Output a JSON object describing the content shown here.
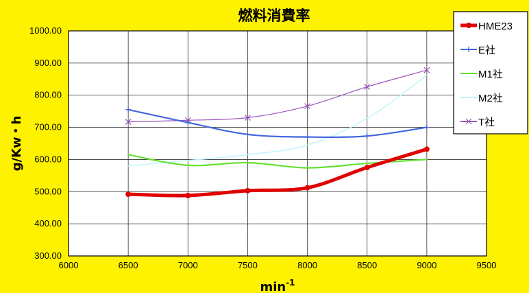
{
  "chart_data": {
    "type": "line",
    "title": "燃料消費率",
    "xlabel": "min",
    "xlabel_sup": "-1",
    "ylabel": "g/Kw・h",
    "xlim": [
      6000,
      9500
    ],
    "ylim": [
      300,
      1000
    ],
    "x_ticks": [
      "6000",
      "6500",
      "7000",
      "7500",
      "8000",
      "8500",
      "9000",
      "9500"
    ],
    "y_ticks": [
      "300.00",
      "400.00",
      "500.00",
      "600.00",
      "700.00",
      "800.00",
      "900.00",
      "1000.00"
    ],
    "x": [
      6500,
      7000,
      7500,
      8000,
      8500,
      9000
    ],
    "grid": true,
    "legend_position": "top-right",
    "series": [
      {
        "name": "HME23",
        "color": "#E00000",
        "marker": "circle",
        "values": [
          492,
          488,
          503,
          512,
          575,
          632
        ]
      },
      {
        "name": "E社",
        "color": "#4466DD",
        "marker": "plus",
        "values": [
          755,
          715,
          678,
          670,
          673,
          700
        ]
      },
      {
        "name": "M1社",
        "color": "#66E033",
        "marker": "none",
        "values": [
          615,
          582,
          590,
          574,
          588,
          600
        ]
      },
      {
        "name": "M2社",
        "color": "#BFF2FF",
        "marker": "none",
        "values": [
          580,
          597,
          615,
          645,
          728,
          862
        ]
      },
      {
        "name": "T社",
        "color": "#9955BB",
        "marker": "cross",
        "values": [
          717,
          722,
          730,
          766,
          826,
          878
        ]
      }
    ]
  }
}
